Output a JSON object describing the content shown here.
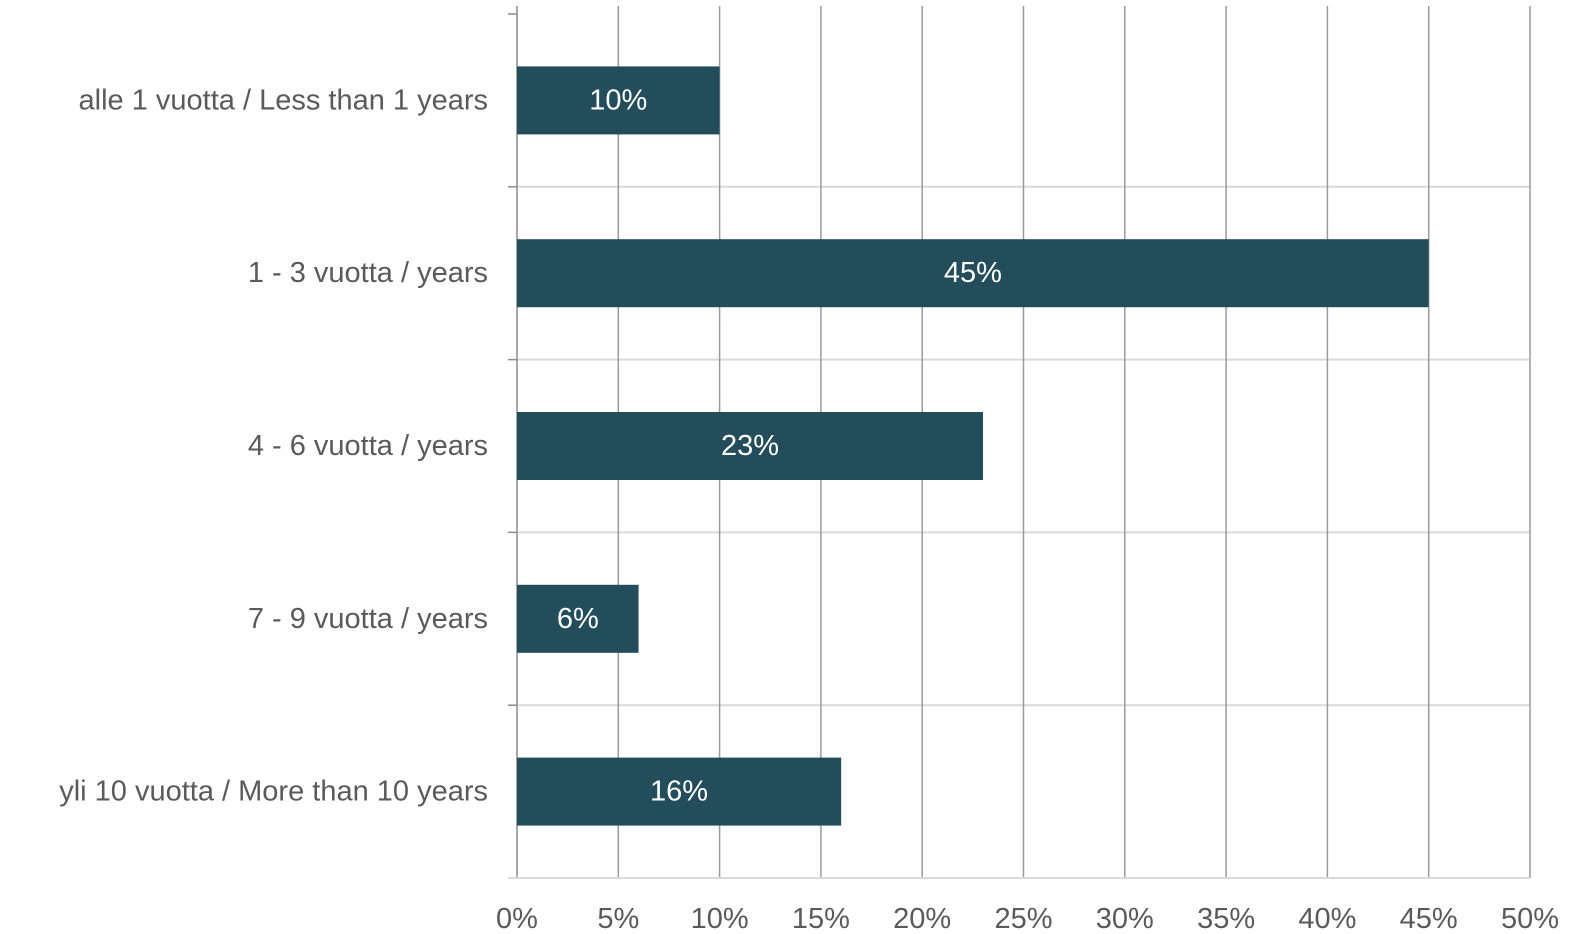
{
  "colors": {
    "bar": "#234d5a",
    "vgrid": "#9a9a9a",
    "hgrid": "#d9d9d9",
    "axis": "#8c8c8c",
    "text": "#5a5a5a",
    "data_label": "#ffffff"
  },
  "chart_data": {
    "type": "bar",
    "orientation": "horizontal",
    "categories": [
      "alle 1 vuotta / Less than 1 years",
      "1 - 3 vuotta / years",
      "4 - 6 vuotta / years",
      "7 - 9 vuotta / years",
      "yli 10 vuotta / More than 10 years"
    ],
    "values": [
      10,
      45,
      23,
      6,
      16
    ],
    "data_labels": [
      "10%",
      "45%",
      "23%",
      "6%",
      "16%"
    ],
    "x_ticks": [
      0,
      5,
      10,
      15,
      20,
      25,
      30,
      35,
      40,
      45,
      50
    ],
    "x_tick_labels": [
      "0%",
      "5%",
      "10%",
      "15%",
      "20%",
      "25%",
      "30%",
      "35%",
      "40%",
      "45%",
      "50%"
    ],
    "xlim": [
      0,
      50
    ],
    "title": "",
    "xlabel": "",
    "ylabel": "",
    "grid": true,
    "legend": "none"
  }
}
